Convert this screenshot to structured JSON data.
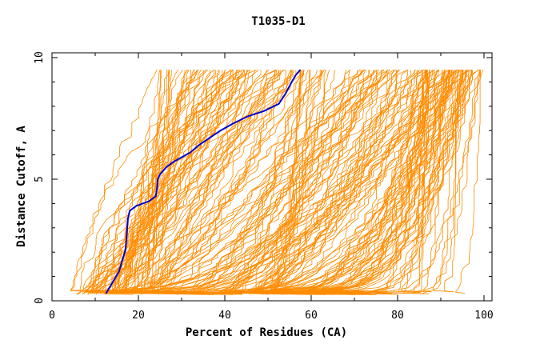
{
  "chart_data": {
    "type": "line",
    "title": "T1035-D1",
    "xlabel": "Percent of Residues (CA)",
    "ylabel": "Distance Cutoff, A",
    "xlim": [
      0,
      100
    ],
    "ylim": [
      0,
      10
    ],
    "x_ticks": [
      "0",
      "20",
      "40",
      "60",
      "80",
      "100"
    ],
    "y_ticks": [
      "0",
      "5",
      "10"
    ],
    "grid": false,
    "legend": "none",
    "colors": {
      "background_series": "#ff8c00",
      "highlight_series": "#0000cc",
      "axis": "#000000"
    },
    "background_series_count": 220,
    "highlight_series": {
      "points": [
        [
          12.5,
          0.3
        ],
        [
          13.5,
          0.6
        ],
        [
          14.5,
          0.9
        ],
        [
          15.5,
          1.2
        ],
        [
          16.0,
          1.5
        ],
        [
          16.5,
          1.8
        ],
        [
          17.0,
          2.1
        ],
        [
          17.2,
          2.5
        ],
        [
          17.4,
          3.0
        ],
        [
          17.6,
          3.4
        ],
        [
          18.0,
          3.7
        ],
        [
          19.5,
          3.9
        ],
        [
          21.0,
          4.0
        ],
        [
          22.5,
          4.1
        ],
        [
          24.0,
          4.3
        ],
        [
          24.3,
          4.6
        ],
        [
          24.5,
          5.0
        ],
        [
          25.0,
          5.2
        ],
        [
          26.5,
          5.5
        ],
        [
          28.0,
          5.7
        ],
        [
          30.0,
          5.9
        ],
        [
          32.0,
          6.1
        ],
        [
          34.0,
          6.4
        ],
        [
          36.5,
          6.7
        ],
        [
          39.0,
          7.0
        ],
        [
          42.0,
          7.3
        ],
        [
          45.5,
          7.6
        ],
        [
          49.0,
          7.8
        ],
        [
          52.5,
          8.1
        ],
        [
          54.0,
          8.5
        ],
        [
          55.5,
          9.0
        ],
        [
          56.5,
          9.3
        ],
        [
          57.5,
          9.5
        ]
      ]
    }
  }
}
